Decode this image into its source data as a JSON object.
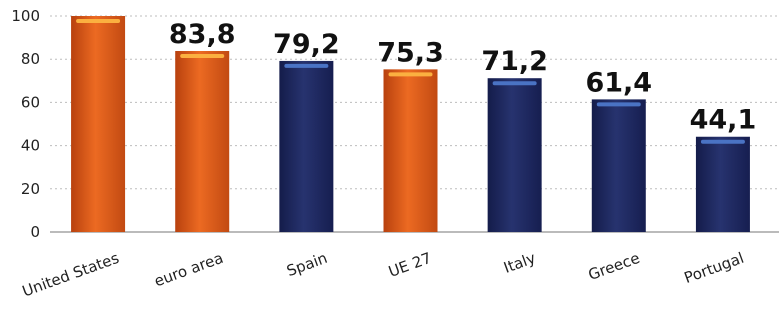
{
  "chart_data": {
    "type": "bar",
    "title": "",
    "xlabel": "",
    "ylabel": "",
    "categories": [
      "United States",
      "euro area",
      "Spain",
      "UE 27",
      "Italy",
      "Greece",
      "Portugal"
    ],
    "values": [
      100,
      83.8,
      79.2,
      75.3,
      71.2,
      61.4,
      44.1
    ],
    "data_labels": [
      "",
      "83,8",
      "79,2",
      "75,3",
      "71,2",
      "61,4",
      "44,1"
    ],
    "ylim": [
      0,
      100
    ],
    "yticks": [
      0,
      20,
      40,
      60,
      80,
      100
    ],
    "grid": true,
    "legend": "none",
    "bar_colors": [
      "#E8601C",
      "#E8601C",
      "#1F2A66",
      "#E8601C",
      "#1F2A66",
      "#1F2A66",
      "#1F2A66"
    ],
    "colors": {
      "orange": "#E8601C",
      "orange_highlight": "#FBB040",
      "navy": "#1F2A66",
      "navy_highlight": "#4A73C4"
    }
  }
}
